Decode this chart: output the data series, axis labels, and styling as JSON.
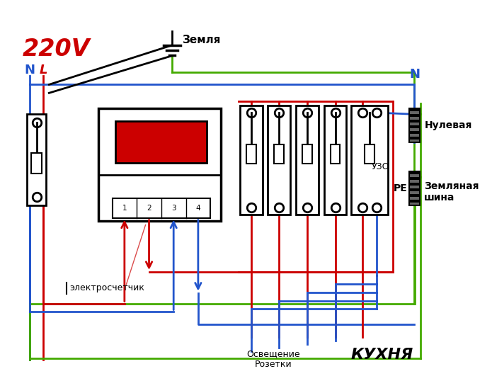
{
  "bg_color": "#ffffff",
  "colors": {
    "red": "#cc0000",
    "blue": "#2255cc",
    "green": "#44aa00",
    "black": "#000000",
    "dark_red": "#990000"
  },
  "labels": {
    "voltage": "220V",
    "N_left": "N",
    "L_left": "L",
    "earth": "Земля",
    "N_right": "N",
    "null_bus": "Нулевая",
    "earth_bus": "Земляная\nшина",
    "PE": "PE",
    "uzo": "УЗО",
    "meter": "электросчетчик",
    "lighting": "Освещение\nРозетки",
    "kitchen": "КУХНЯ"
  }
}
